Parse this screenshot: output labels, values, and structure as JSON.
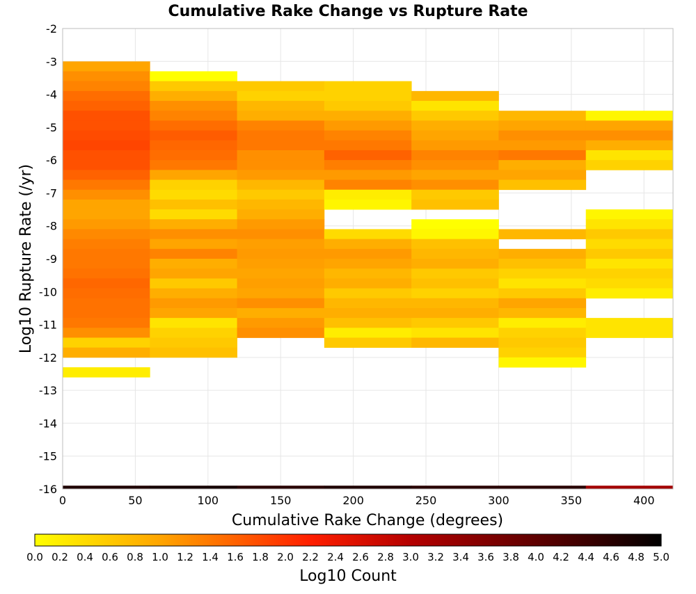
{
  "chart_data": {
    "type": "heatmap",
    "title": "Cumulative Rake Change vs Rupture Rate",
    "xlabel": "Cumulative Rake Change (degrees)",
    "ylabel": "Log10 Rupture Rate (/yr)",
    "xlim": [
      0,
      420
    ],
    "ylim": [
      -16,
      -2
    ],
    "x_ticks": [
      0,
      50,
      100,
      150,
      200,
      250,
      300,
      350,
      400
    ],
    "y_ticks": [
      -16,
      -15,
      -14,
      -13,
      -12,
      -11,
      -10,
      -9,
      -8,
      -7,
      -6,
      -5,
      -4,
      -3,
      -2
    ],
    "grid": true,
    "x_bin_width": 60,
    "y_bin_height": 0.3,
    "colorbar": {
      "label": "Log10 Count",
      "min": 0.0,
      "max": 5.0,
      "ticks": [
        "0.0",
        "0.2",
        "0.4",
        "0.6",
        "0.8",
        "1.0",
        "1.2",
        "1.4",
        "1.6",
        "1.8",
        "2.0",
        "2.2",
        "2.4",
        "2.6",
        "2.8",
        "3.0",
        "3.2",
        "3.4",
        "3.6",
        "3.8",
        "4.0",
        "4.2",
        "4.4",
        "4.6",
        "4.8",
        "5.0"
      ],
      "stops": [
        {
          "value": 0.0,
          "color": "#ffff00"
        },
        {
          "value": 1.0,
          "color": "#ffa500"
        },
        {
          "value": 2.2,
          "color": "#ff1e00"
        },
        {
          "value": 3.0,
          "color": "#b40000"
        },
        {
          "value": 4.4,
          "color": "#3c0000"
        },
        {
          "value": 5.0,
          "color": "#000000"
        }
      ]
    },
    "columns": [
      {
        "x_start": 0,
        "cells": [
          {
            "y": -3.0,
            "v": 1.0
          },
          {
            "y": -3.3,
            "v": 1.2
          },
          {
            "y": -3.6,
            "v": 1.3
          },
          {
            "y": -3.9,
            "v": 1.5
          },
          {
            "y": -4.2,
            "v": 1.6
          },
          {
            "y": -4.5,
            "v": 1.75
          },
          {
            "y": -4.8,
            "v": 1.75
          },
          {
            "y": -5.1,
            "v": 1.8
          },
          {
            "y": -5.4,
            "v": 1.85
          },
          {
            "y": -5.7,
            "v": 1.75
          },
          {
            "y": -6.0,
            "v": 1.75
          },
          {
            "y": -6.3,
            "v": 1.6
          },
          {
            "y": -6.6,
            "v": 1.4
          },
          {
            "y": -6.9,
            "v": 1.2
          },
          {
            "y": -7.2,
            "v": 1.0
          },
          {
            "y": -7.5,
            "v": 1.0
          },
          {
            "y": -7.8,
            "v": 1.1
          },
          {
            "y": -8.1,
            "v": 1.25
          },
          {
            "y": -8.4,
            "v": 1.35
          },
          {
            "y": -8.7,
            "v": 1.4
          },
          {
            "y": -9.0,
            "v": 1.4
          },
          {
            "y": -9.3,
            "v": 1.45
          },
          {
            "y": -9.6,
            "v": 1.55
          },
          {
            "y": -9.9,
            "v": 1.5
          },
          {
            "y": -10.2,
            "v": 1.45
          },
          {
            "y": -10.5,
            "v": 1.45
          },
          {
            "y": -10.8,
            "v": 1.4
          },
          {
            "y": -11.1,
            "v": 1.2
          },
          {
            "y": -11.4,
            "v": 0.5
          },
          {
            "y": -11.7,
            "v": 0.9
          },
          {
            "y": -12.3,
            "v": 0.2
          }
        ]
      },
      {
        "x_start": 60,
        "cells": [
          {
            "y": -3.3,
            "v": 0.0
          },
          {
            "y": -3.6,
            "v": 0.6
          },
          {
            "y": -3.9,
            "v": 0.9
          },
          {
            "y": -4.2,
            "v": 1.2
          },
          {
            "y": -4.5,
            "v": 1.3
          },
          {
            "y": -4.8,
            "v": 1.5
          },
          {
            "y": -5.1,
            "v": 1.65
          },
          {
            "y": -5.4,
            "v": 1.55
          },
          {
            "y": -5.7,
            "v": 1.5
          },
          {
            "y": -6.0,
            "v": 1.4
          },
          {
            "y": -6.3,
            "v": 1.0
          },
          {
            "y": -6.6,
            "v": 0.5
          },
          {
            "y": -6.9,
            "v": 0.4
          },
          {
            "y": -7.2,
            "v": 0.7
          },
          {
            "y": -7.5,
            "v": 0.4
          },
          {
            "y": -7.8,
            "v": 0.9
          },
          {
            "y": -8.1,
            "v": 1.2
          },
          {
            "y": -8.4,
            "v": 1.0
          },
          {
            "y": -8.7,
            "v": 1.3
          },
          {
            "y": -9.0,
            "v": 0.9
          },
          {
            "y": -9.3,
            "v": 1.0
          },
          {
            "y": -9.6,
            "v": 0.6
          },
          {
            "y": -9.9,
            "v": 0.9
          },
          {
            "y": -10.2,
            "v": 1.1
          },
          {
            "y": -10.5,
            "v": 1.0
          },
          {
            "y": -10.8,
            "v": 0.3
          },
          {
            "y": -11.1,
            "v": 0.5
          },
          {
            "y": -11.4,
            "v": 0.6
          },
          {
            "y": -11.7,
            "v": 0.7
          }
        ]
      },
      {
        "x_start": 120,
        "cells": [
          {
            "y": -3.6,
            "v": 0.6
          },
          {
            "y": -3.9,
            "v": 0.5
          },
          {
            "y": -4.2,
            "v": 0.8
          },
          {
            "y": -4.5,
            "v": 0.9
          },
          {
            "y": -4.8,
            "v": 1.3
          },
          {
            "y": -5.1,
            "v": 1.4
          },
          {
            "y": -5.4,
            "v": 1.4
          },
          {
            "y": -5.7,
            "v": 1.2
          },
          {
            "y": -6.0,
            "v": 1.2
          },
          {
            "y": -6.3,
            "v": 1.1
          },
          {
            "y": -6.6,
            "v": 0.8
          },
          {
            "y": -6.9,
            "v": 0.6
          },
          {
            "y": -7.2,
            "v": 0.8
          },
          {
            "y": -7.5,
            "v": 0.9
          },
          {
            "y": -7.8,
            "v": 1.1
          },
          {
            "y": -8.1,
            "v": 1.2
          },
          {
            "y": -8.4,
            "v": 1.05
          },
          {
            "y": -8.7,
            "v": 1.1
          },
          {
            "y": -9.0,
            "v": 1.05
          },
          {
            "y": -9.3,
            "v": 1.0
          },
          {
            "y": -9.6,
            "v": 1.05
          },
          {
            "y": -9.9,
            "v": 1.0
          },
          {
            "y": -10.2,
            "v": 1.2
          },
          {
            "y": -10.5,
            "v": 0.9
          },
          {
            "y": -10.8,
            "v": 1.1
          },
          {
            "y": -11.1,
            "v": 1.2
          }
        ]
      },
      {
        "x_start": 180,
        "cells": [
          {
            "y": -3.6,
            "v": 0.5
          },
          {
            "y": -3.9,
            "v": 0.5
          },
          {
            "y": -4.2,
            "v": 0.6
          },
          {
            "y": -4.5,
            "v": 0.9
          },
          {
            "y": -4.8,
            "v": 1.1
          },
          {
            "y": -5.1,
            "v": 1.3
          },
          {
            "y": -5.4,
            "v": 1.4
          },
          {
            "y": -5.7,
            "v": 1.6
          },
          {
            "y": -6.0,
            "v": 1.35
          },
          {
            "y": -6.3,
            "v": 1.1
          },
          {
            "y": -6.6,
            "v": 1.3
          },
          {
            "y": -6.9,
            "v": 0.2
          },
          {
            "y": -7.2,
            "v": 0.1
          },
          {
            "y": -8.1,
            "v": 0.4
          },
          {
            "y": -8.4,
            "v": 0.9
          },
          {
            "y": -8.7,
            "v": 1.1
          },
          {
            "y": -9.0,
            "v": 1.0
          },
          {
            "y": -9.3,
            "v": 0.8
          },
          {
            "y": -9.6,
            "v": 0.9
          },
          {
            "y": -9.9,
            "v": 0.6
          },
          {
            "y": -10.2,
            "v": 0.8
          },
          {
            "y": -10.5,
            "v": 0.9
          },
          {
            "y": -10.8,
            "v": 0.7
          },
          {
            "y": -11.1,
            "v": 0.2
          },
          {
            "y": -11.4,
            "v": 0.6
          }
        ]
      },
      {
        "x_start": 240,
        "cells": [
          {
            "y": -3.9,
            "v": 0.8
          },
          {
            "y": -4.2,
            "v": 0.3
          },
          {
            "y": -4.5,
            "v": 0.6
          },
          {
            "y": -4.8,
            "v": 0.9
          },
          {
            "y": -5.1,
            "v": 1.0
          },
          {
            "y": -5.4,
            "v": 1.1
          },
          {
            "y": -5.7,
            "v": 1.3
          },
          {
            "y": -6.0,
            "v": 1.2
          },
          {
            "y": -6.3,
            "v": 1.0
          },
          {
            "y": -6.6,
            "v": 1.2
          },
          {
            "y": -6.9,
            "v": 0.6
          },
          {
            "y": -7.2,
            "v": 0.7
          },
          {
            "y": -7.8,
            "v": 0.0
          },
          {
            "y": -8.1,
            "v": 0.1
          },
          {
            "y": -8.4,
            "v": 0.7
          },
          {
            "y": -8.7,
            "v": 0.8
          },
          {
            "y": -9.0,
            "v": 0.9
          },
          {
            "y": -9.3,
            "v": 0.6
          },
          {
            "y": -9.6,
            "v": 0.7
          },
          {
            "y": -9.9,
            "v": 0.5
          },
          {
            "y": -10.2,
            "v": 0.8
          },
          {
            "y": -10.5,
            "v": 0.9
          },
          {
            "y": -10.8,
            "v": 0.6
          },
          {
            "y": -11.1,
            "v": 0.3
          },
          {
            "y": -11.4,
            "v": 0.8
          }
        ]
      },
      {
        "x_start": 300,
        "cells": [
          {
            "y": -4.5,
            "v": 0.8
          },
          {
            "y": -4.8,
            "v": 1.0
          },
          {
            "y": -5.1,
            "v": 1.2
          },
          {
            "y": -5.4,
            "v": 1.1
          },
          {
            "y": -5.7,
            "v": 1.4
          },
          {
            "y": -6.0,
            "v": 0.9
          },
          {
            "y": -6.3,
            "v": 1.0
          },
          {
            "y": -6.6,
            "v": 0.7
          },
          {
            "y": -8.1,
            "v": 0.8
          },
          {
            "y": -8.7,
            "v": 0.9
          },
          {
            "y": -9.0,
            "v": 0.7
          },
          {
            "y": -9.3,
            "v": 0.5
          },
          {
            "y": -9.6,
            "v": 0.3
          },
          {
            "y": -9.9,
            "v": 0.6
          },
          {
            "y": -10.2,
            "v": 1.0
          },
          {
            "y": -10.5,
            "v": 0.8
          },
          {
            "y": -10.8,
            "v": 0.2
          },
          {
            "y": -11.1,
            "v": 0.5
          },
          {
            "y": -11.4,
            "v": 0.6
          },
          {
            "y": -11.7,
            "v": 0.5
          },
          {
            "y": -12.0,
            "v": 0.1
          }
        ]
      },
      {
        "x_start": 360,
        "cells": [
          {
            "y": -4.5,
            "v": 0.1
          },
          {
            "y": -4.8,
            "v": 1.0
          },
          {
            "y": -5.1,
            "v": 1.2
          },
          {
            "y": -5.4,
            "v": 0.9
          },
          {
            "y": -5.7,
            "v": 0.3
          },
          {
            "y": -6.0,
            "v": 0.5
          },
          {
            "y": -7.5,
            "v": 0.1
          },
          {
            "y": -7.8,
            "v": 0.3
          },
          {
            "y": -8.1,
            "v": 0.6
          },
          {
            "y": -8.4,
            "v": 0.4
          },
          {
            "y": -8.7,
            "v": 0.6
          },
          {
            "y": -9.0,
            "v": 0.3
          },
          {
            "y": -9.3,
            "v": 0.5
          },
          {
            "y": -9.6,
            "v": 0.4
          },
          {
            "y": -9.9,
            "v": 0.2
          },
          {
            "y": -10.8,
            "v": 0.3
          },
          {
            "y": -11.1,
            "v": 0.3
          }
        ]
      }
    ],
    "bottom_row": {
      "y": -15.9,
      "cells": [
        {
          "x_start": 0,
          "v": 4.7
        },
        {
          "x_start": 60,
          "v": 4.8
        },
        {
          "x_start": 120,
          "v": 4.6
        },
        {
          "x_start": 180,
          "v": 4.7
        },
        {
          "x_start": 240,
          "v": 4.6
        },
        {
          "x_start": 300,
          "v": 4.6
        },
        {
          "x_start": 360,
          "v": 3.2
        }
      ]
    }
  }
}
